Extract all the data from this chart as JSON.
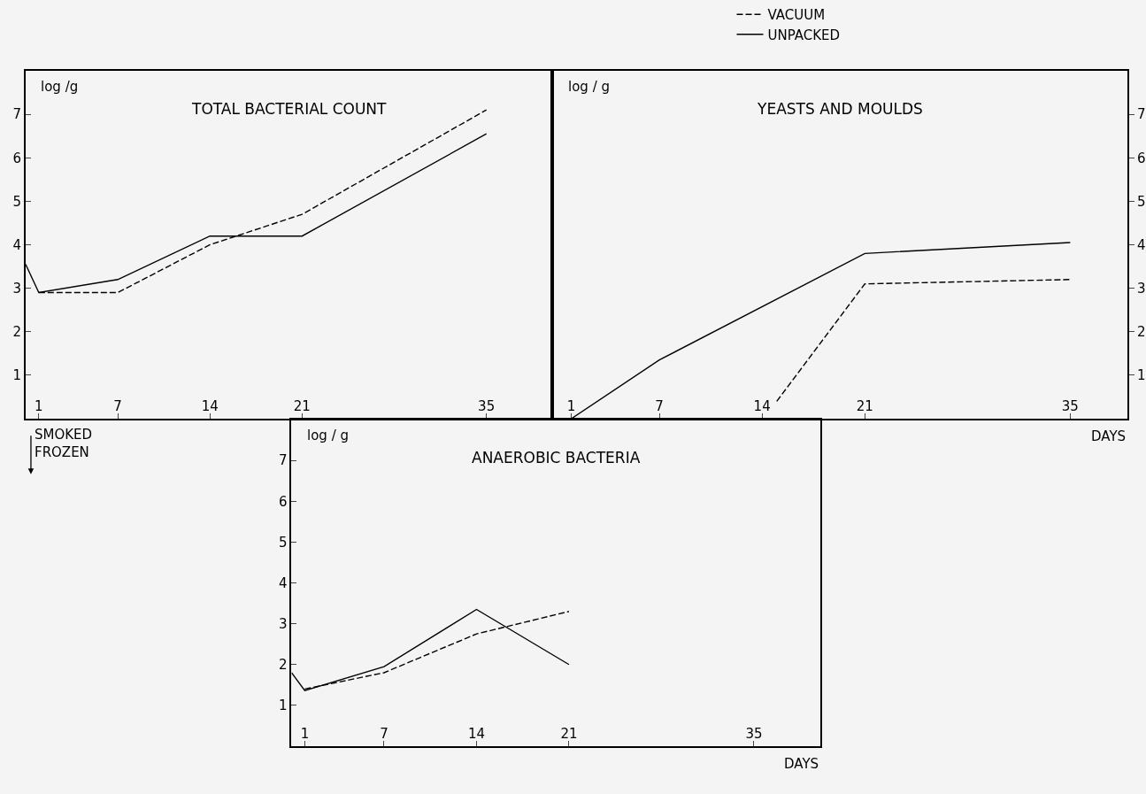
{
  "chart_data": [
    {
      "type": "line",
      "title": "TOTAL BACTERIAL COUNT",
      "ylabel": "log /g",
      "xlim": [
        0,
        40
      ],
      "ylim": [
        0,
        8
      ],
      "xticks": [
        1,
        7,
        14,
        21,
        35
      ],
      "yticks": [
        1,
        2,
        3,
        4,
        5,
        6,
        7
      ],
      "grid": false,
      "marker": "none",
      "legend": "top",
      "annotations": [
        "SMOKED\nFROZEN"
      ],
      "series": [
        {
          "name": "VACUUM",
          "color": "#000000",
          "line_style": "dashed",
          "x": [
            1,
            7,
            14,
            21,
            35
          ],
          "values": [
            2.9,
            2.9,
            4.0,
            4.7,
            7.1
          ]
        },
        {
          "name": "UNPACKED",
          "color": "#000000",
          "line_style": "solid",
          "x": [
            0,
            1,
            7,
            14,
            21,
            35
          ],
          "values": [
            3.55,
            2.9,
            3.2,
            4.2,
            4.2,
            6.55
          ]
        }
      ]
    },
    {
      "type": "line",
      "title": "YEASTS AND MOULDS",
      "y2label": "log / g",
      "xlabel": "DAYS",
      "xlim": [
        -0.3,
        38.9
      ],
      "y2lim": [
        0,
        8
      ],
      "xticks": [
        1,
        7,
        14,
        21,
        35
      ],
      "y2ticks": [
        1,
        2,
        3,
        4,
        5,
        6,
        7
      ],
      "grid": false,
      "marker": "none",
      "series": [
        {
          "color": "#000000",
          "line_style": "dashed",
          "axis": "y2",
          "x": [
            15,
            21,
            35
          ],
          "values": [
            0.4,
            3.1,
            3.2
          ]
        },
        {
          "color": "#000000",
          "line_style": "solid",
          "axis": "y2",
          "x": [
            1,
            7,
            21,
            35
          ],
          "values": [
            0,
            1.35,
            3.8,
            4.05
          ]
        }
      ]
    },
    {
      "type": "line",
      "title": "ANAEROBIC BACTERIA",
      "ylabel": "log / g",
      "xlabel": "DAYS",
      "xlim": [
        0,
        40
      ],
      "ylim": [
        0,
        8
      ],
      "xticks": [
        1,
        7,
        14,
        21,
        35
      ],
      "yticks": [
        1,
        2,
        3,
        4,
        5,
        6,
        7
      ],
      "grid": false,
      "marker": "none",
      "series": [
        {
          "color": "#000000",
          "line_style": "dashed",
          "x": [
            1,
            7,
            14,
            21
          ],
          "values": [
            1.4,
            1.8,
            2.75,
            3.3
          ]
        },
        {
          "color": "#000000",
          "line_style": "solid",
          "x": [
            0,
            1,
            7,
            14,
            21
          ],
          "values": [
            1.8,
            1.36,
            1.95,
            3.35,
            2.0
          ]
        }
      ]
    }
  ]
}
